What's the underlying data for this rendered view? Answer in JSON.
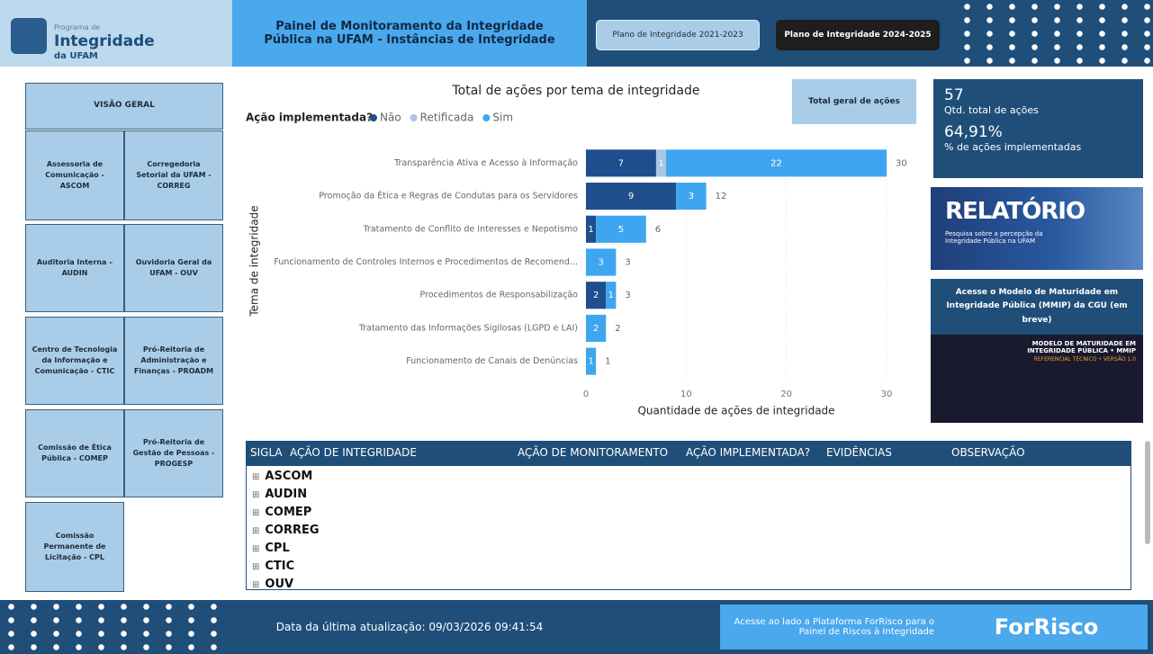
{
  "header": {
    "logo_small": "Programa de",
    "logo_main": "Integridade",
    "logo_sub": "da UFAM",
    "title": "Painel de Monitoramento da Integridade Pública na UFAM - Instâncias de Integridade",
    "buttons": [
      "Plano de Integridade 2021-2023",
      "Plano de Integridade 2024-2025"
    ]
  },
  "nav": {
    "overview": "VISÃO GERAL",
    "items": [
      "Assessoria de Comunicação - ASCOM",
      "Corregedoria Setorial da UFAM - CORREG",
      "Auditoria Interna – AUDIN",
      "Ouvidoria Geral da UFAM - OUV",
      "Centro de Tecnologia da Informação e Comunicação - CTIC",
      "Pró-Reitoria de Administração e Finanças - PROADM",
      "Comissão de Ética Pública - COMEP",
      "Pró-Reitoria de Gestão de Pessoas - PROGESP",
      "Comissão Permanente de Licitação - CPL"
    ]
  },
  "chart_data": {
    "type": "stacked-bar-horizontal",
    "title": "Total de ações por tema de integridade",
    "legend_title": "Ação implementada?",
    "x_label": "Quantidade de ações de integridade",
    "y_label": "Tema de integridade",
    "categories": [
      "Transparência Ativa e Acesso à Informação",
      "Promoção da Ética e Regras de Condutas para os Servidores",
      "Tratamento de Conflito de Interesses e Nepotismo",
      "Funcionamento de Controles Internos e Procedimentos de Recomend...",
      "Procedimentos de Responsabilização",
      "Tratamento das Informações Sigilosas (LGPD e LAI)",
      "Funcionamento de Canais de Denúncias"
    ],
    "series": [
      {
        "name": "Não",
        "color": "#1f4e8c",
        "values": [
          7,
          9,
          1,
          0,
          2,
          0,
          0
        ]
      },
      {
        "name": "Retificada",
        "color": "#a9c6e3",
        "values": [
          1,
          0,
          0,
          0,
          0,
          0,
          0
        ]
      },
      {
        "name": "Sim",
        "color": "#3ea6f0",
        "values": [
          22,
          3,
          5,
          3,
          1,
          2,
          1
        ]
      }
    ],
    "totals": [
      30,
      12,
      6,
      3,
      3,
      2,
      1
    ],
    "xlim": [
      0,
      30
    ],
    "xticks": [
      0,
      10,
      20,
      30
    ],
    "grid": true
  },
  "total_button": "Total geral de ações",
  "kpis": [
    {
      "value": "57",
      "label": "Qtd. total de ações"
    },
    {
      "value": "64,91%",
      "label": "% de ações implementadas"
    }
  ],
  "report": {
    "title": "RELATÓRIO",
    "subtitle": "Pesquisa sobre a percepção da Integridade Pública na UFAM"
  },
  "mmip": {
    "link": "Acesse o Modelo de Maturidade em Integridade Pública (MMIP) da CGU (em breve)",
    "image_title": "MODELO DE MATURIDADE EM INTEGRIDADE PÚBLICA • MMIP",
    "image_sub": "REFERENCIAL TÉCNICO • VERSÃO 1.0"
  },
  "table": {
    "columns": [
      "SIGLA",
      "AÇÃO DE INTEGRIDADE",
      "AÇÃO DE MONITORAMENTO",
      "AÇÃO IMPLEMENTADA?",
      "EVIDÊNCIAS",
      "OBSERVAÇÃO"
    ],
    "rows": [
      "ASCOM",
      "AUDIN",
      "COMEP",
      "CORREG",
      "CPL",
      "CTIC",
      "OUV"
    ]
  },
  "footer": {
    "updated": "Data da última atualização: 09/03/2026 09:41:54",
    "forrisco_text": "Acesse ao lado a Plataforma ForRisco para o Painel de Riscos à Integridade",
    "brand": "ForRisco"
  }
}
